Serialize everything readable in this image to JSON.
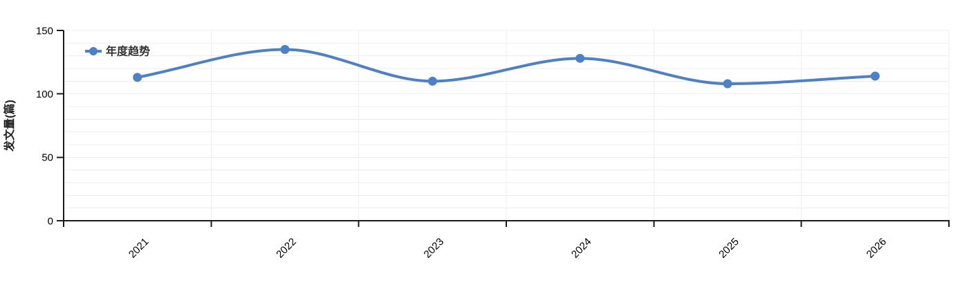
{
  "page": {
    "background": "#ffffff"
  },
  "legend": {
    "label": "年度趋势"
  },
  "y_axis": {
    "title": "发文量(篇)",
    "tick_labels": [
      "0",
      "50",
      "100",
      "150"
    ]
  },
  "x_axis": {
    "tick_labels": [
      "2021",
      "2022",
      "2023",
      "2024",
      "2025",
      "2026"
    ]
  },
  "chart_data": {
    "type": "line",
    "categories": [
      "2021",
      "2022",
      "2023",
      "2024",
      "2025",
      "2026"
    ],
    "series": [
      {
        "name": "年度趋势",
        "values": [
          113,
          135,
          110,
          128,
          108,
          114
        ]
      }
    ],
    "title": "",
    "xlabel": "",
    "ylabel": "发文量(篇)",
    "ylim": [
      0,
      150
    ],
    "yticks": [
      0,
      50,
      100,
      150
    ],
    "minor_grid_step": 10,
    "grid": true,
    "legend_position": "top-left",
    "smooth": true,
    "markers": true,
    "colors": {
      "line": "#4d80c4",
      "marker": "#4d80c4",
      "grid": "#ececec",
      "axis": "#1a1a1a",
      "tick_text": "#000000",
      "legend_text": "#333333",
      "axis_title_text": "#222222"
    }
  }
}
